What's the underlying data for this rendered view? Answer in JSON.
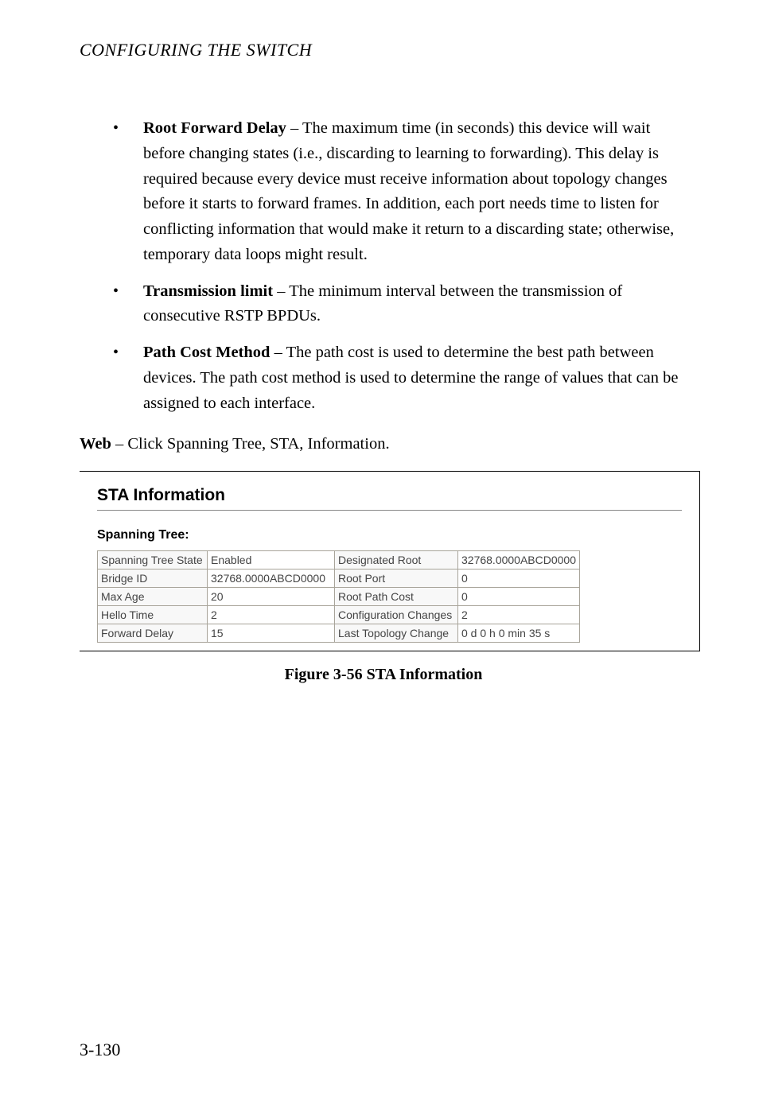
{
  "header": "CONFIGURING THE SWITCH",
  "bullets": [
    {
      "bold": "Root Forward Delay",
      "text": " – The maximum time (in seconds) this device will wait before changing states (i.e., discarding to learning to forwarding). This delay is required because every device must receive information about topology changes before it starts to forward frames. In addition, each port needs time to listen for conflicting information that would make it return to a discarding state; otherwise, temporary data loops might result."
    },
    {
      "bold": "Transmission limit",
      "text": " – The minimum interval between the transmission of consecutive RSTP BPDUs."
    },
    {
      "bold": "Path Cost Method",
      "text": " – The path cost is used to determine the best path between devices. The path cost method is used to determine the range of values that can be assigned to each interface."
    }
  ],
  "web_bold": "Web",
  "web_text": " – Click Spanning Tree, STA, Information.",
  "screenshot": {
    "title": "STA Information",
    "subheading": "Spanning Tree:",
    "rows": [
      {
        "c0": "Spanning Tree State",
        "c1": "Enabled",
        "c2": "Designated Root",
        "c3": "32768.0000ABCD0000"
      },
      {
        "c0": "Bridge ID",
        "c1": "32768.0000ABCD0000",
        "c2": "Root Port",
        "c3": "0"
      },
      {
        "c0": "Max Age",
        "c1": "20",
        "c2": "Root Path Cost",
        "c3": "0"
      },
      {
        "c0": "Hello Time",
        "c1": "2",
        "c2": "Configuration Changes",
        "c3": "2"
      },
      {
        "c0": "Forward Delay",
        "c1": "15",
        "c2": "Last Topology Change",
        "c3": "0 d 0 h 0 min 35 s"
      }
    ]
  },
  "figure_caption": "Figure 3-56  STA Information",
  "page_number": "3-130"
}
